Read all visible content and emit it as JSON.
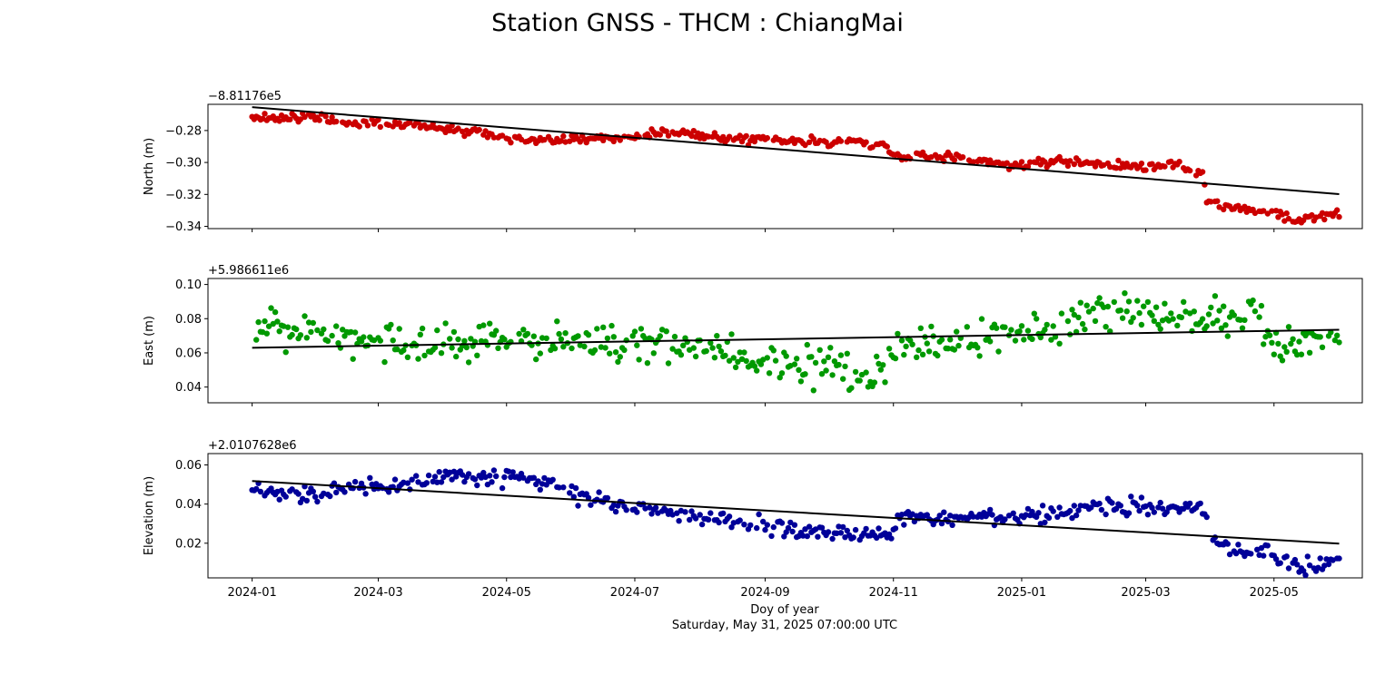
{
  "figure": {
    "title": "Station GNSS - THCM : ChiangMai",
    "xlabel": "Doy of year",
    "xsublabel": "Saturday, May 31, 2025 07:00:00 UTC"
  },
  "chart_data": [
    {
      "type": "scatter",
      "name": "north",
      "ylabel": "North (m)",
      "offset_label": "−8.81176e5",
      "color": "#cc0000",
      "trend_color": "#000000",
      "xlim": [
        "2023-12-11",
        "2025-06-12"
      ],
      "ylim": [
        -0.3414,
        -0.2636
      ],
      "yticks": [
        -0.28,
        -0.3,
        -0.32,
        -0.34
      ],
      "ytick_labels": [
        "−0.28",
        "−0.30",
        "−0.32",
        "−0.34"
      ],
      "trend": {
        "x": [
          "2024-01-01",
          "2025-06-01"
        ],
        "y": [
          -0.2654,
          -0.3198
        ]
      },
      "key_points": [
        [
          "2024-01-01",
          -0.272
        ],
        [
          "2024-02-01",
          -0.272
        ],
        [
          "2024-02-15",
          -0.275
        ],
        [
          "2024-03-15",
          -0.276
        ],
        [
          "2024-04-15",
          -0.28
        ],
        [
          "2024-05-10",
          -0.286
        ],
        [
          "2024-06-15",
          -0.284
        ],
        [
          "2024-07-01",
          -0.285
        ],
        [
          "2024-07-15",
          -0.281
        ],
        [
          "2024-08-01",
          -0.282
        ],
        [
          "2024-08-15",
          -0.285
        ],
        [
          "2024-09-15",
          -0.287
        ],
        [
          "2024-10-15",
          -0.287
        ],
        [
          "2024-10-28",
          -0.289
        ],
        [
          "2024-11-02",
          -0.296
        ],
        [
          "2024-12-01",
          -0.297
        ],
        [
          "2024-12-31",
          -0.302
        ],
        [
          "2025-01-15",
          -0.299
        ],
        [
          "2025-02-15",
          -0.302
        ],
        [
          "2025-03-15",
          -0.302
        ],
        [
          "2025-03-28",
          -0.307
        ],
        [
          "2025-03-30",
          -0.324
        ],
        [
          "2025-04-15",
          -0.329
        ],
        [
          "2025-05-01",
          -0.331
        ],
        [
          "2025-05-10",
          -0.336
        ],
        [
          "2025-06-01",
          -0.332
        ]
      ],
      "noise": 0.0014,
      "seed": 11
    },
    {
      "type": "scatter",
      "name": "east",
      "ylabel": "East (m)",
      "offset_label": "+5.986611e6",
      "color": "#009900",
      "trend_color": "#000000",
      "xlim": [
        "2023-12-11",
        "2025-06-12"
      ],
      "ylim": [
        0.0308,
        0.1035
      ],
      "yticks": [
        0.04,
        0.06,
        0.08,
        0.1
      ],
      "ytick_labels": [
        "0.04",
        "0.06",
        "0.08",
        "0.10"
      ],
      "trend": {
        "x": [
          "2024-01-01",
          "2025-06-01"
        ],
        "y": [
          0.063,
          0.0735
        ]
      },
      "key_points": [
        [
          "2024-01-01",
          0.075
        ],
        [
          "2024-02-01",
          0.073
        ],
        [
          "2024-02-20",
          0.068
        ],
        [
          "2024-03-15",
          0.066
        ],
        [
          "2024-04-15",
          0.064
        ],
        [
          "2024-05-01",
          0.068
        ],
        [
          "2024-06-01",
          0.068
        ],
        [
          "2024-07-01",
          0.065
        ],
        [
          "2024-08-01",
          0.064
        ],
        [
          "2024-08-15",
          0.058
        ],
        [
          "2024-09-01",
          0.055
        ],
        [
          "2024-10-01",
          0.051
        ],
        [
          "2024-10-20",
          0.043
        ],
        [
          "2024-11-01",
          0.06
        ],
        [
          "2024-12-01",
          0.068
        ],
        [
          "2025-01-01",
          0.073
        ],
        [
          "2025-02-01",
          0.082
        ],
        [
          "2025-03-01",
          0.086
        ],
        [
          "2025-04-01",
          0.082
        ],
        [
          "2025-04-25",
          0.083
        ],
        [
          "2025-05-01",
          0.062
        ],
        [
          "2025-05-15",
          0.066
        ],
        [
          "2025-06-01",
          0.072
        ]
      ],
      "noise": 0.0055,
      "seed": 23
    },
    {
      "type": "scatter",
      "name": "elevation",
      "ylabel": "Elevation (m)",
      "offset_label": "+2.0107628e6",
      "color": "#000099",
      "trend_color": "#000000",
      "xlim": [
        "2023-12-11",
        "2025-06-12"
      ],
      "ylim": [
        0.0023,
        0.0658
      ],
      "yticks": [
        0.02,
        0.04,
        0.06
      ],
      "ytick_labels": [
        "0.02",
        "0.04",
        "0.06"
      ],
      "trend": {
        "x": [
          "2024-01-01",
          "2025-06-01"
        ],
        "y": [
          0.0518,
          0.0198
        ]
      },
      "key_points": [
        [
          "2024-01-01",
          0.046
        ],
        [
          "2024-02-01",
          0.046
        ],
        [
          "2024-03-01",
          0.049
        ],
        [
          "2024-04-01",
          0.053
        ],
        [
          "2024-05-01",
          0.054
        ],
        [
          "2024-05-20",
          0.05
        ],
        [
          "2024-06-15",
          0.041
        ],
        [
          "2024-07-15",
          0.036
        ],
        [
          "2024-08-15",
          0.031
        ],
        [
          "2024-09-15",
          0.027
        ],
        [
          "2024-10-15",
          0.024
        ],
        [
          "2024-10-30",
          0.025
        ],
        [
          "2024-11-05",
          0.033
        ],
        [
          "2024-12-01",
          0.033
        ],
        [
          "2025-01-01",
          0.033
        ],
        [
          "2025-02-01",
          0.038
        ],
        [
          "2025-03-01",
          0.039
        ],
        [
          "2025-03-28",
          0.038
        ],
        [
          "2025-04-01",
          0.022
        ],
        [
          "2025-04-15",
          0.017
        ],
        [
          "2025-05-01",
          0.015
        ],
        [
          "2025-05-15",
          0.008
        ],
        [
          "2025-06-01",
          0.013
        ]
      ],
      "noise": 0.0022,
      "seed": 37
    }
  ],
  "xaxis": {
    "ticks": [
      "2024-01-01",
      "2024-03-01",
      "2024-05-01",
      "2024-07-01",
      "2024-09-01",
      "2024-11-01",
      "2025-01-01",
      "2025-03-01",
      "2025-05-01"
    ],
    "tick_labels": [
      "2024-01",
      "2024-03",
      "2024-05",
      "2024-07",
      "2024-09",
      "2024-11",
      "2025-01",
      "2025-03",
      "2025-05"
    ],
    "data_start": "2024-01-01",
    "data_end": "2025-06-01"
  }
}
